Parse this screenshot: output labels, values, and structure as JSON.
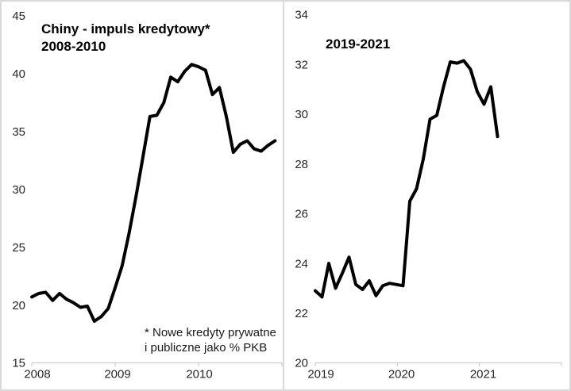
{
  "styles": {
    "background": "#ffffff",
    "border_color": "#d9d9d9",
    "divider_color": "#d9d9d9",
    "axis_color": "#d2d2d2",
    "tick_label_color": "#262626",
    "title_color": "#000000",
    "line_color": "#000000"
  },
  "chart_data": [
    {
      "type": "line",
      "title": "Chiny - impuls kredytowy*",
      "subtitle": "2008-2010",
      "footnote_line1": "* Nowe kredyty prywatne",
      "footnote_line2": "i publiczne jako % PKB",
      "xlabel": "",
      "ylabel": "",
      "x_frequency": "monthly",
      "x_tick_labels": [
        "2008",
        "2009",
        "2010"
      ],
      "y_ticks": [
        15,
        20,
        25,
        30,
        35,
        40,
        45
      ],
      "ylim": [
        15,
        45
      ],
      "grid": false,
      "legend": "none",
      "line_color": "#000000",
      "series": [
        {
          "name": "Chiny - impuls kredytowy (% PKB)",
          "values": [
            20.7,
            21.0,
            21.1,
            20.4,
            21.0,
            20.5,
            20.2,
            19.8,
            19.9,
            18.6,
            19.0,
            19.7,
            21.5,
            23.4,
            26.2,
            29.4,
            32.8,
            36.3,
            36.4,
            37.5,
            39.7,
            39.3,
            40.2,
            40.8,
            40.6,
            40.3,
            38.2,
            38.8,
            36.3,
            33.2,
            33.9,
            34.2,
            33.5,
            33.3,
            33.8,
            34.2
          ]
        }
      ]
    },
    {
      "type": "line",
      "title": "2019-2021",
      "subtitle": "",
      "xlabel": "",
      "ylabel": "",
      "x_frequency": "monthly",
      "x_tick_labels": [
        "2019",
        "2020",
        "2021"
      ],
      "y_ticks": [
        20,
        22,
        24,
        26,
        28,
        30,
        32,
        34
      ],
      "ylim": [
        20,
        34
      ],
      "grid": false,
      "legend": "none",
      "line_color": "#000000",
      "series": [
        {
          "name": "Chiny - impuls kredytowy (% PKB)",
          "values": [
            22.9,
            22.65,
            24.0,
            23.0,
            23.6,
            24.25,
            23.15,
            22.95,
            23.3,
            22.7,
            23.1,
            23.2,
            23.15,
            23.1,
            26.5,
            27.0,
            28.2,
            29.8,
            29.95,
            31.1,
            32.1,
            32.05,
            32.15,
            31.8,
            30.9,
            30.4,
            31.1,
            29.1
          ]
        }
      ]
    }
  ]
}
